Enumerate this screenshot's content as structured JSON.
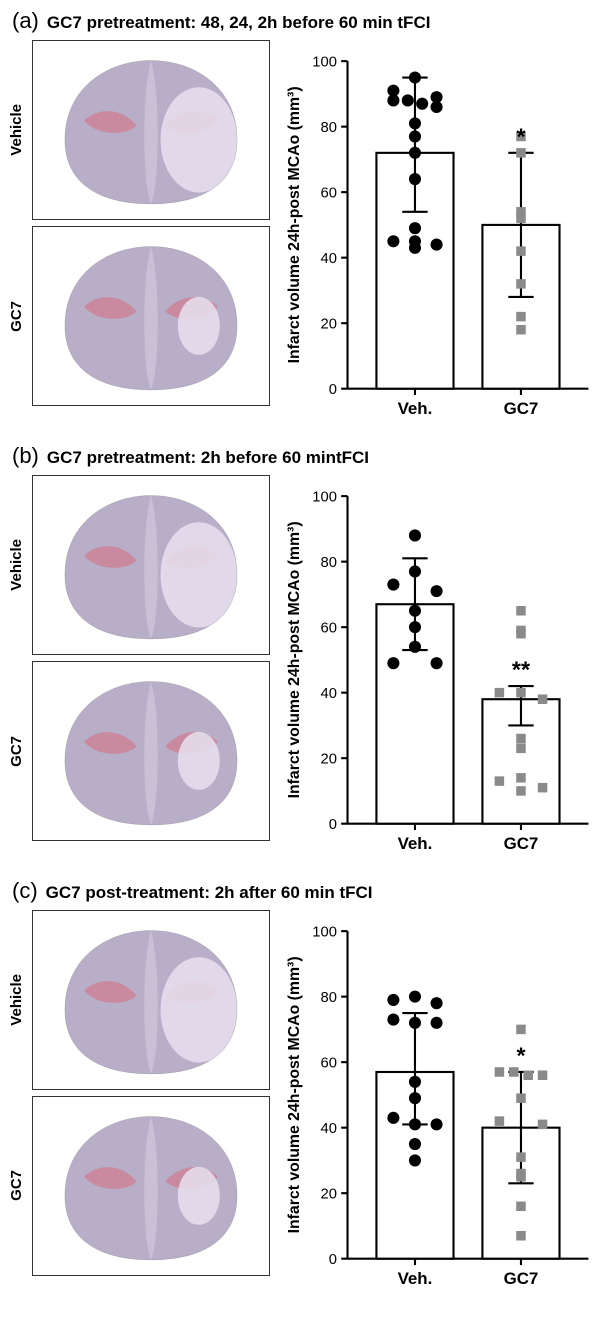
{
  "panels": [
    {
      "letter": "(a)",
      "title": "GC7 pretreatment: 48, 24, 2h before 60 min tFCI",
      "image_labels": [
        "Vehicle",
        "GC7"
      ],
      "chart": {
        "type": "bar_scatter",
        "y_axis_label": "Infarct volume 24h-post MCAo (mm³)",
        "ylim": [
          0,
          100
        ],
        "ytick_step": 20,
        "background_color": "#ffffff",
        "axis_color": "#000000",
        "bar_fill": "#ffffff",
        "bar_stroke": "#000000",
        "bar_stroke_width": 2,
        "error_cap_width": 12,
        "groups": [
          {
            "label": "Veh.",
            "mean": 72,
            "sd_upper": 95,
            "sd_lower": 54,
            "marker": "circle",
            "marker_color": "#000000",
            "marker_size": 8,
            "points": [
              95,
              91,
              89,
              88,
              88,
              87,
              86,
              81,
              77,
              72,
              64,
              49,
              45,
              45,
              44,
              43
            ],
            "sig": ""
          },
          {
            "label": "GC7",
            "mean": 50,
            "sd_upper": 72,
            "sd_lower": 28,
            "marker": "square",
            "marker_color": "#8a8a8a",
            "marker_size": 9,
            "points": [
              77,
              72,
              54,
              52,
              42,
              32,
              22,
              18
            ],
            "sig": "*"
          }
        ]
      }
    },
    {
      "letter": "(b)",
      "title": "GC7 pretreatment: 2h before 60 mintFCI",
      "image_labels": [
        "Vehicle",
        "GC7"
      ],
      "chart": {
        "type": "bar_scatter",
        "y_axis_label": "Infarct volume 24h-post MCAo (mm³)",
        "ylim": [
          0,
          100
        ],
        "ytick_step": 20,
        "background_color": "#ffffff",
        "axis_color": "#000000",
        "bar_fill": "#ffffff",
        "bar_stroke": "#000000",
        "bar_stroke_width": 2,
        "error_cap_width": 12,
        "groups": [
          {
            "label": "Veh.",
            "mean": 67,
            "sd_upper": 81,
            "sd_lower": 53,
            "marker": "circle",
            "marker_color": "#000000",
            "marker_size": 8,
            "points": [
              88,
              77,
              73,
              71,
              65,
              60,
              54,
              49,
              49
            ],
            "sig": ""
          },
          {
            "label": "GC7",
            "mean": 38,
            "sd_upper": 42,
            "sd_lower": 30,
            "marker": "square",
            "marker_color": "#8a8a8a",
            "marker_size": 9,
            "points": [
              65,
              59,
              58,
              40,
              40,
              38,
              26,
              23,
              14,
              13,
              11,
              10
            ],
            "sig": "**"
          }
        ]
      }
    },
    {
      "letter": "(c)",
      "title": "GC7 post-treatment: 2h after 60 min tFCI",
      "image_labels": [
        "Vehicle",
        "GC7"
      ],
      "chart": {
        "type": "bar_scatter",
        "y_axis_label": "Infarct volume 24h-post MCAo (mm³)",
        "ylim": [
          0,
          100
        ],
        "ytick_step": 20,
        "background_color": "#ffffff",
        "axis_color": "#000000",
        "bar_fill": "#ffffff",
        "bar_stroke": "#000000",
        "bar_stroke_width": 2,
        "error_cap_width": 12,
        "groups": [
          {
            "label": "Veh.",
            "mean": 57,
            "sd_upper": 75,
            "sd_lower": 41,
            "marker": "circle",
            "marker_color": "#000000",
            "marker_size": 8,
            "points": [
              80,
              79,
              78,
              73,
              72,
              72,
              54,
              49,
              43,
              41,
              41,
              35,
              30
            ],
            "sig": ""
          },
          {
            "label": "GC7",
            "mean": 40,
            "sd_upper": 57,
            "sd_lower": 23,
            "marker": "square",
            "marker_color": "#8a8a8a",
            "marker_size": 9,
            "points": [
              70,
              57,
              57,
              56,
              56,
              49,
              42,
              41,
              31,
              26,
              25,
              16,
              7
            ],
            "sig": "*"
          }
        ]
      }
    }
  ],
  "brain_colors": {
    "tissue": "#b8aec8",
    "tissue_light": "#d4cce0",
    "hippocampus": "#c98aa0",
    "infarct": "#e8e0ef",
    "border": "#333333"
  }
}
